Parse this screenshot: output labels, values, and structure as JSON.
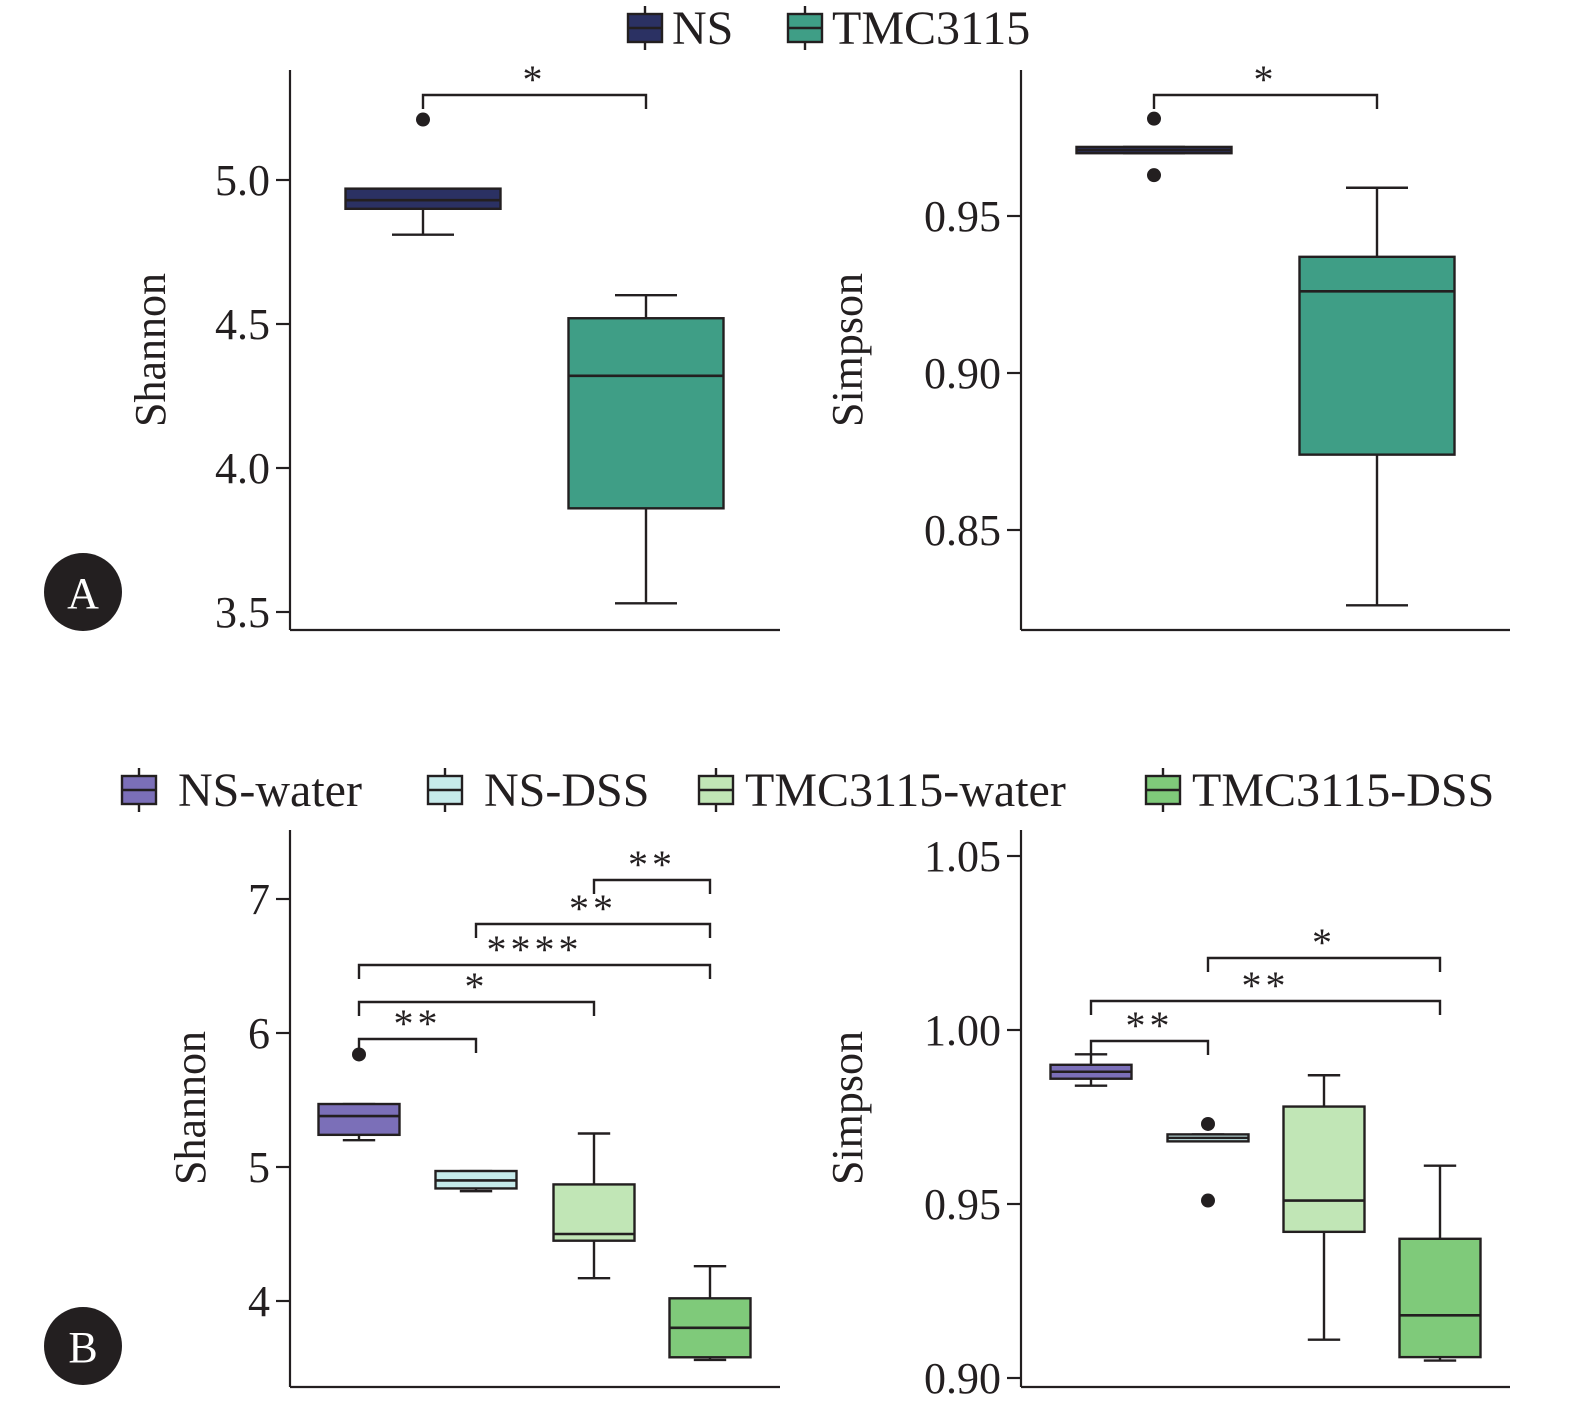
{
  "panels": [
    {
      "label": "A",
      "legend": [
        {
          "name": "NS",
          "color": "#2b3163"
        },
        {
          "name": "TMC3115",
          "color": "#3f9e86"
        }
      ],
      "charts": [
        {
          "ylabel": "Shannon",
          "yticks": [
            "3.5",
            "4.0",
            "4.5",
            "5.0"
          ],
          "boxes": [
            {
              "group": "NS",
              "color": "#2b3163",
              "min": 4.81,
              "q1": 4.9,
              "median": 4.93,
              "q3": 4.97,
              "max": 4.97,
              "outliers": [
                5.21
              ]
            },
            {
              "group": "TMC3115",
              "color": "#3f9e86",
              "min": 3.53,
              "q1": 3.86,
              "median": 4.32,
              "q3": 4.52,
              "max": 4.6,
              "outliers": []
            }
          ],
          "significance": [
            {
              "from": 0,
              "to": 1,
              "label": "*"
            }
          ]
        },
        {
          "ylabel": "Simpson",
          "yticks": [
            "0.85",
            "0.90",
            "0.95"
          ],
          "boxes": [
            {
              "group": "NS",
              "color": "#2b3163",
              "min": 0.97,
              "q1": 0.97,
              "median": 0.971,
              "q3": 0.972,
              "max": 0.972,
              "outliers": [
                0.981,
                0.963
              ]
            },
            {
              "group": "TMC3115",
              "color": "#3f9e86",
              "min": 0.826,
              "q1": 0.874,
              "median": 0.926,
              "q3": 0.937,
              "max": 0.959,
              "outliers": []
            }
          ],
          "significance": [
            {
              "from": 0,
              "to": 1,
              "label": "*"
            }
          ]
        }
      ]
    },
    {
      "label": "B",
      "legend": [
        {
          "name": "NS-water",
          "color": "#7b6fb8"
        },
        {
          "name": "NS-DSS",
          "color": "#c6eaea"
        },
        {
          "name": "TMC3115-water",
          "color": "#c1e6b6"
        },
        {
          "name": "TMC3115-DSS",
          "color": "#7fca7a"
        }
      ],
      "charts": [
        {
          "ylabel": "Shannon",
          "yticks": [
            "4",
            "5",
            "6",
            "7"
          ],
          "boxes": [
            {
              "group": "NS-water",
              "color": "#7b6fb8",
              "min": 5.2,
              "q1": 5.24,
              "median": 5.38,
              "q3": 5.47,
              "max": 5.47,
              "outliers": [
                5.84
              ]
            },
            {
              "group": "NS-DSS",
              "color": "#c6eaea",
              "min": 4.82,
              "q1": 4.84,
              "median": 4.9,
              "q3": 4.97,
              "max": 4.97,
              "outliers": []
            },
            {
              "group": "TMC3115-water",
              "color": "#c1e6b6",
              "min": 4.17,
              "q1": 4.45,
              "median": 4.5,
              "q3": 4.87,
              "max": 5.25,
              "outliers": []
            },
            {
              "group": "TMC3115-DSS",
              "color": "#7fca7a",
              "min": 3.56,
              "q1": 3.58,
              "median": 3.8,
              "q3": 4.02,
              "max": 4.26,
              "outliers": []
            }
          ],
          "significance": [
            {
              "from": 0,
              "to": 1,
              "label": "**"
            },
            {
              "from": 0,
              "to": 2,
              "label": "*"
            },
            {
              "from": 0,
              "to": 3,
              "label": "****"
            },
            {
              "from": 1,
              "to": 3,
              "label": "**"
            },
            {
              "from": 2,
              "to": 3,
              "label": "**"
            }
          ]
        },
        {
          "ylabel": "Simpson",
          "yticks": [
            "0.90",
            "0.95",
            "1.00",
            "1.05"
          ],
          "boxes": [
            {
              "group": "NS-water",
              "color": "#7b6fb8",
              "min": 0.984,
              "q1": 0.986,
              "median": 0.988,
              "q3": 0.99,
              "max": 0.993,
              "outliers": []
            },
            {
              "group": "NS-DSS",
              "color": "#c6eaea",
              "min": 0.968,
              "q1": 0.968,
              "median": 0.969,
              "q3": 0.97,
              "max": 0.97,
              "outliers": [
                0.973,
                0.951
              ]
            },
            {
              "group": "TMC3115-water",
              "color": "#c1e6b6",
              "min": 0.911,
              "q1": 0.942,
              "median": 0.951,
              "q3": 0.978,
              "max": 0.987,
              "outliers": []
            },
            {
              "group": "TMC3115-DSS",
              "color": "#7fca7a",
              "min": 0.905,
              "q1": 0.906,
              "median": 0.918,
              "q3": 0.94,
              "max": 0.961,
              "outliers": []
            }
          ],
          "significance": [
            {
              "from": 0,
              "to": 1,
              "label": "**"
            },
            {
              "from": 0,
              "to": 3,
              "label": "**"
            },
            {
              "from": 1,
              "to": 3,
              "label": "*"
            }
          ]
        }
      ]
    }
  ],
  "chart_data": [
    {
      "type": "box",
      "panel": "A",
      "ylabel": "Shannon",
      "ylim": [
        3.43,
        5.38
      ],
      "categories": [
        "NS",
        "TMC3115"
      ],
      "series": [
        {
          "name": "NS",
          "values": {
            "min": 4.81,
            "q1": 4.9,
            "median": 4.93,
            "q3": 4.97,
            "max": 4.97,
            "outliers": [
              5.21
            ]
          }
        },
        {
          "name": "TMC3115",
          "values": {
            "min": 3.53,
            "q1": 3.86,
            "median": 4.32,
            "q3": 4.52,
            "max": 4.6,
            "outliers": []
          }
        }
      ],
      "annotations": [
        {
          "pair": [
            "NS",
            "TMC3115"
          ],
          "label": "*"
        }
      ]
    },
    {
      "type": "box",
      "panel": "A",
      "ylabel": "Simpson",
      "ylim": [
        0.818,
        0.996
      ],
      "categories": [
        "NS",
        "TMC3115"
      ],
      "series": [
        {
          "name": "NS",
          "values": {
            "min": 0.97,
            "q1": 0.97,
            "median": 0.971,
            "q3": 0.972,
            "max": 0.972,
            "outliers": [
              0.981,
              0.963
            ]
          }
        },
        {
          "name": "TMC3115",
          "values": {
            "min": 0.826,
            "q1": 0.874,
            "median": 0.926,
            "q3": 0.937,
            "max": 0.959,
            "outliers": []
          }
        }
      ],
      "annotations": [
        {
          "pair": [
            "NS",
            "TMC3115"
          ],
          "label": "*"
        }
      ]
    },
    {
      "type": "box",
      "panel": "B",
      "ylabel": "Shannon",
      "ylim": [
        3.37,
        7.51
      ],
      "categories": [
        "NS-water",
        "NS-DSS",
        "TMC3115-water",
        "TMC3115-DSS"
      ],
      "series": [
        {
          "name": "NS-water",
          "values": {
            "min": 5.2,
            "q1": 5.24,
            "median": 5.38,
            "q3": 5.47,
            "max": 5.47,
            "outliers": [
              5.84
            ]
          }
        },
        {
          "name": "NS-DSS",
          "values": {
            "min": 4.82,
            "q1": 4.84,
            "median": 4.9,
            "q3": 4.97,
            "max": 4.97,
            "outliers": []
          }
        },
        {
          "name": "TMC3115-water",
          "values": {
            "min": 4.17,
            "q1": 4.45,
            "median": 4.5,
            "q3": 4.87,
            "max": 5.25,
            "outliers": []
          }
        },
        {
          "name": "TMC3115-DSS",
          "values": {
            "min": 3.56,
            "q1": 3.58,
            "median": 3.8,
            "q3": 4.02,
            "max": 4.26,
            "outliers": []
          }
        }
      ],
      "annotations": [
        {
          "pair": [
            "NS-water",
            "NS-DSS"
          ],
          "label": "**"
        },
        {
          "pair": [
            "NS-water",
            "TMC3115-water"
          ],
          "label": "*"
        },
        {
          "pair": [
            "NS-water",
            "TMC3115-DSS"
          ],
          "label": "****"
        },
        {
          "pair": [
            "NS-DSS",
            "TMC3115-DSS"
          ],
          "label": "**"
        },
        {
          "pair": [
            "TMC3115-water",
            "TMC3115-DSS"
          ],
          "label": "**"
        }
      ]
    },
    {
      "type": "box",
      "panel": "B",
      "ylabel": "Simpson",
      "ylim": [
        0.898,
        1.063
      ],
      "categories": [
        "NS-water",
        "NS-DSS",
        "TMC3115-water",
        "TMC3115-DSS"
      ],
      "series": [
        {
          "name": "NS-water",
          "values": {
            "min": 0.984,
            "q1": 0.986,
            "median": 0.988,
            "q3": 0.99,
            "max": 0.993,
            "outliers": []
          }
        },
        {
          "name": "NS-DSS",
          "values": {
            "min": 0.968,
            "q1": 0.968,
            "median": 0.969,
            "q3": 0.97,
            "max": 0.97,
            "outliers": [
              0.973,
              0.951
            ]
          }
        },
        {
          "name": "TMC3115-water",
          "values": {
            "min": 0.911,
            "q1": 0.942,
            "median": 0.951,
            "q3": 0.978,
            "max": 0.987,
            "outliers": []
          }
        },
        {
          "name": "TMC3115-DSS",
          "values": {
            "min": 0.905,
            "q1": 0.906,
            "median": 0.918,
            "q3": 0.94,
            "max": 0.961,
            "outliers": []
          }
        }
      ],
      "annotations": [
        {
          "pair": [
            "NS-water",
            "NS-DSS"
          ],
          "label": "**"
        },
        {
          "pair": [
            "NS-water",
            "TMC3115-DSS"
          ],
          "label": "**"
        },
        {
          "pair": [
            "NS-DSS",
            "TMC3115-DSS"
          ],
          "label": "*"
        }
      ]
    }
  ]
}
